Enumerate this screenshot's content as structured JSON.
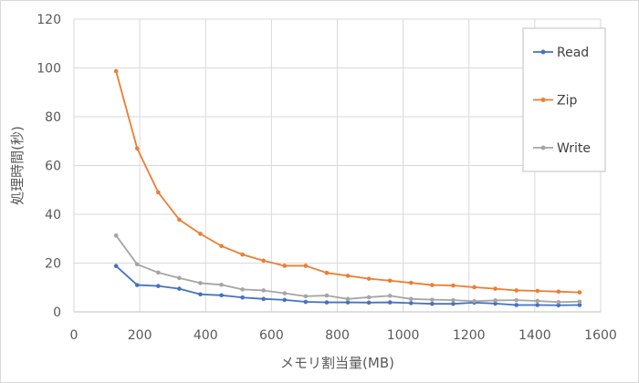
{
  "chart_data": {
    "type": "line",
    "xlabel": "メモリ割当量(MB)",
    "ylabel": "処理時間(秒)",
    "xlim": [
      0,
      1600
    ],
    "ylim": [
      0,
      120
    ],
    "xticks": [
      0,
      200,
      400,
      600,
      800,
      1000,
      1200,
      1400,
      1600
    ],
    "yticks": [
      0,
      20,
      40,
      60,
      80,
      100,
      120
    ],
    "grid": "vertical and horizontal major gridlines",
    "legend_position": "right",
    "x": [
      128,
      192,
      256,
      320,
      384,
      448,
      512,
      576,
      640,
      704,
      768,
      832,
      896,
      960,
      1024,
      1088,
      1152,
      1216,
      1280,
      1344,
      1408,
      1472,
      1536
    ],
    "series": [
      {
        "name": "Read",
        "color": "#4472c4",
        "values": [
          18.8,
          11,
          10.6,
          9.5,
          7.2,
          6.8,
          5.9,
          5.3,
          4.9,
          4.1,
          3.9,
          3.9,
          3.8,
          3.9,
          3.6,
          3.3,
          3.3,
          3.8,
          3.4,
          2.8,
          2.8,
          2.7,
          2.8
        ]
      },
      {
        "name": "Zip",
        "color": "#ed7d31",
        "values": [
          98.7,
          67,
          49,
          37.8,
          32,
          27,
          23.5,
          21,
          18.9,
          18.9,
          16,
          14.8,
          13.6,
          12.8,
          11.9,
          11,
          10.8,
          10.1,
          9.5,
          8.8,
          8.6,
          8.3,
          8
        ]
      },
      {
        "name": "Write",
        "color": "#a5a5a5",
        "values": [
          31.3,
          19.5,
          16.1,
          13.9,
          11.8,
          11.1,
          9.2,
          8.8,
          7.6,
          6.4,
          6.7,
          5.3,
          6,
          6.6,
          5.3,
          5,
          4.8,
          4.4,
          4.7,
          4.8,
          4.5,
          4,
          4.2
        ]
      }
    ]
  }
}
